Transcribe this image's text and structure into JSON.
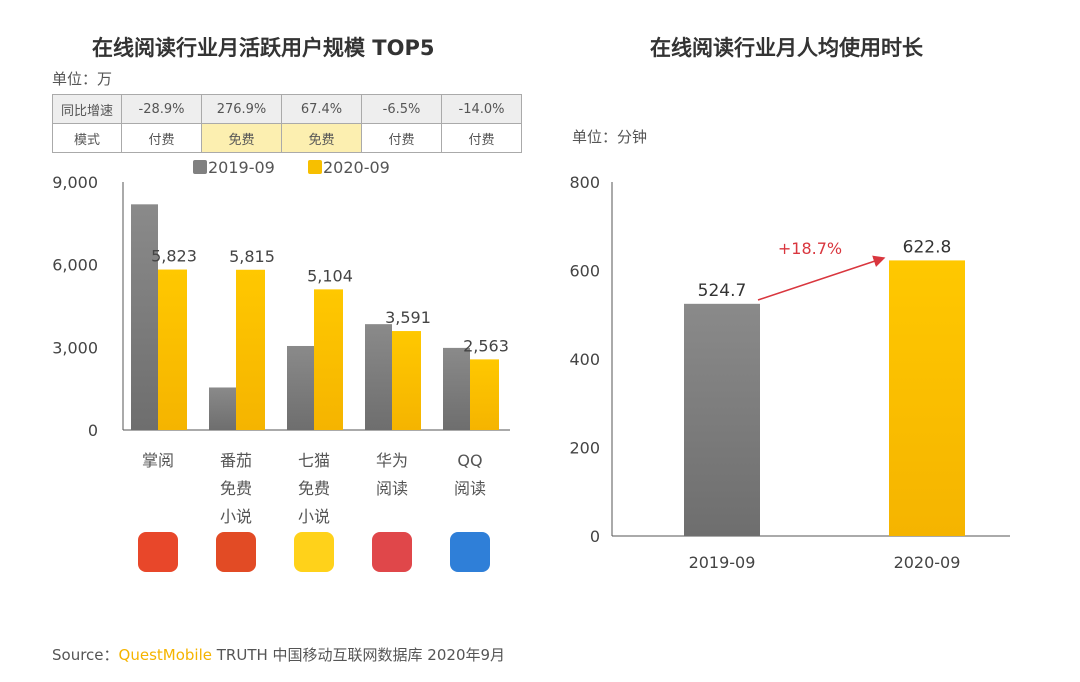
{
  "left": {
    "title": "在线阅读行业月活跃用户规模 TOP5",
    "unit": "单位：万",
    "table": {
      "row1_label": "同比增速",
      "growth": [
        "-28.9%",
        "276.9%",
        "67.4%",
        "-6.5%",
        "-14.0%"
      ],
      "row2_label": "模式",
      "mode": [
        "付费",
        "免费",
        "免费",
        "付费",
        "付费"
      ]
    },
    "icons": [
      "zhangyue-app-icon",
      "fanqie-app-icon",
      "qimao-app-icon",
      "huawei-reader-app-icon",
      "qq-reader-app-icon"
    ]
  },
  "right": {
    "title": "在线阅读行业月人均使用时长",
    "unit": "单位：分钟",
    "annotation": "+18.7%"
  },
  "colors": {
    "series_2019": "#808080",
    "series_2020": "#f7bf00",
    "annotation": "#d9363e"
  },
  "source": {
    "prefix": "Source：",
    "brand": "QuestMobile",
    "rest": "TRUTH 中国移动互联网数据库 2020年9月"
  },
  "chart_data": [
    {
      "type": "bar",
      "title": "在线阅读行业月活跃用户规模 TOP5",
      "ylabel": "单位：万",
      "categories": [
        "掌阅",
        "番茄免费小说",
        "七猫免费小说",
        "华为阅读",
        "QQ阅读"
      ],
      "category_lines": [
        [
          "掌阅"
        ],
        [
          "番茄",
          "免费",
          "小说"
        ],
        [
          "七猫",
          "免费",
          "小说"
        ],
        [
          "华为",
          "阅读"
        ],
        [
          "QQ",
          "阅读"
        ]
      ],
      "series": [
        {
          "name": "2019-09",
          "values": [
            8190,
            1543,
            3049,
            3841,
            2980
          ]
        },
        {
          "name": "2020-09",
          "values": [
            5823,
            5815,
            5104,
            3591,
            2563
          ],
          "labels": [
            "5,823",
            "5,815",
            "5,104",
            "3,591",
            "2,563"
          ]
        }
      ],
      "ylim": [
        0,
        9000
      ],
      "yticks": [
        "0",
        "3,000",
        "6,000",
        "9,000"
      ],
      "legend": "top",
      "grid": false
    },
    {
      "type": "bar",
      "title": "在线阅读行业月人均使用时长",
      "ylabel": "单位：分钟",
      "categories": [
        "2019-09",
        "2020-09"
      ],
      "values": [
        524.7,
        622.8
      ],
      "labels": [
        "524.7",
        "622.8"
      ],
      "ylim": [
        0,
        800
      ],
      "yticks": [
        "0",
        "200",
        "400",
        "600",
        "800"
      ],
      "grid": false
    }
  ]
}
